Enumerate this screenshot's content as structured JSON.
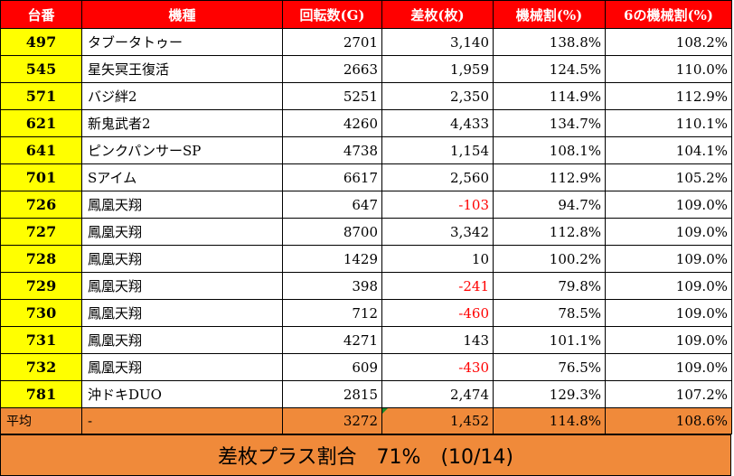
{
  "headers": [
    "台番",
    "機種",
    "回転数(G)",
    "差枚(枚)",
    "機械割(%)",
    "6の機械割(%)"
  ],
  "rows": [
    {
      "id": "497",
      "name": "タブータトゥー",
      "spins": "2701",
      "diff": "3,140",
      "rate": "138.8%",
      "rate6": "108.2%",
      "neg": false
    },
    {
      "id": "545",
      "name": "星矢冥王復活",
      "spins": "2663",
      "diff": "1,959",
      "rate": "124.5%",
      "rate6": "110.0%",
      "neg": false
    },
    {
      "id": "571",
      "name": "バジ絆2",
      "spins": "5251",
      "diff": "2,350",
      "rate": "114.9%",
      "rate6": "112.9%",
      "neg": false
    },
    {
      "id": "621",
      "name": "新鬼武者2",
      "spins": "4260",
      "diff": "4,433",
      "rate": "134.7%",
      "rate6": "110.1%",
      "neg": false
    },
    {
      "id": "641",
      "name": "ピンクパンサーSP",
      "spins": "4738",
      "diff": "1,154",
      "rate": "108.1%",
      "rate6": "104.1%",
      "neg": false
    },
    {
      "id": "701",
      "name": "Sアイム",
      "spins": "6617",
      "diff": "2,560",
      "rate": "112.9%",
      "rate6": "105.2%",
      "neg": false
    },
    {
      "id": "726",
      "name": "鳳凰天翔",
      "spins": "647",
      "diff": "-103",
      "rate": "94.7%",
      "rate6": "109.0%",
      "neg": true
    },
    {
      "id": "727",
      "name": "鳳凰天翔",
      "spins": "8700",
      "diff": "3,342",
      "rate": "112.8%",
      "rate6": "109.0%",
      "neg": false
    },
    {
      "id": "728",
      "name": "鳳凰天翔",
      "spins": "1429",
      "diff": "10",
      "rate": "100.2%",
      "rate6": "109.0%",
      "neg": false
    },
    {
      "id": "729",
      "name": "鳳凰天翔",
      "spins": "398",
      "diff": "-241",
      "rate": "79.8%",
      "rate6": "109.0%",
      "neg": true
    },
    {
      "id": "730",
      "name": "鳳凰天翔",
      "spins": "712",
      "diff": "-460",
      "rate": "78.5%",
      "rate6": "109.0%",
      "neg": true
    },
    {
      "id": "731",
      "name": "鳳凰天翔",
      "spins": "4271",
      "diff": "143",
      "rate": "101.1%",
      "rate6": "109.0%",
      "neg": false
    },
    {
      "id": "732",
      "name": "鳳凰天翔",
      "spins": "609",
      "diff": "-430",
      "rate": "76.5%",
      "rate6": "109.0%",
      "neg": true
    },
    {
      "id": "781",
      "name": "沖ドキDUO",
      "spins": "2815",
      "diff": "2,474",
      "rate": "129.3%",
      "rate6": "107.2%",
      "neg": false
    }
  ],
  "average": {
    "label": "平均",
    "name": "-",
    "spins": "3272",
    "diff": "1,452",
    "rate": "114.8%",
    "rate6": "108.6%"
  },
  "summary": "差枚プラス割合　71%　(10/14)",
  "colors": {
    "header_bg": "#ff0000",
    "id_bg": "#ffff00",
    "avg_bg": "#f08a3a",
    "negative": "#ff0000"
  }
}
